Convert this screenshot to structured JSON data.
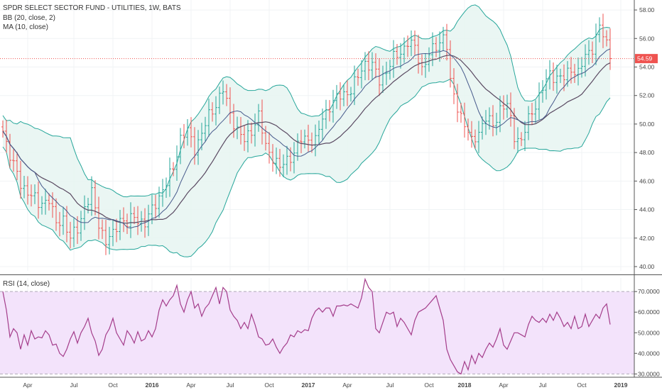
{
  "header": {
    "title": "SPDR SELECT SECTOR FUND - UTILITIES, 1W, BATS",
    "bb_label": "BB (20, close, 2)",
    "ma_label": "MA (10, close)",
    "rsi_label": "RSI (14, close)"
  },
  "colors": {
    "up": "#26a69a",
    "down": "#ef5350",
    "bb_band": "#26a69a",
    "bb_fill": "#e6f4f1",
    "basis": "#5a4a62",
    "ma": "#475a8c",
    "rsi_line": "#a43d8b",
    "rsi_fill": "#f3e3fb",
    "price_line": "#ef5350"
  },
  "chart_data": [
    {
      "type": "candlestick",
      "title": "SPDR SELECT SECTOR FUND - UTILITIES, 1W, BATS",
      "timeframe": "1W",
      "x_ticks": [
        "Apr",
        "Jul",
        "Oct",
        "2016",
        "Apr",
        "Jul",
        "Oct",
        "2017",
        "Apr",
        "Jul",
        "Oct",
        "2018",
        "Apr",
        "Jul",
        "Oct",
        "2019"
      ],
      "y_ticks": [
        "40.00",
        "42.00",
        "44.00",
        "46.00",
        "48.00",
        "50.00",
        "52.00",
        "54.00",
        "56.00",
        "58.00"
      ],
      "ylim": [
        39.7,
        58.7
      ],
      "last_price": "54.59",
      "close_approx": [
        [
          0,
          49.5
        ],
        [
          2,
          47.9
        ],
        [
          5,
          45.7
        ],
        [
          8,
          45.1
        ],
        [
          10,
          44.3
        ],
        [
          13,
          44.8
        ],
        [
          15,
          42.9
        ],
        [
          17,
          43.4
        ],
        [
          19,
          42.0
        ],
        [
          21,
          42.6
        ],
        [
          23,
          44.2
        ],
        [
          25,
          45.1
        ],
        [
          27,
          43.0
        ],
        [
          29,
          41.8
        ],
        [
          31,
          42.2
        ],
        [
          33,
          43.4
        ],
        [
          35,
          43.0
        ],
        [
          37,
          43.5
        ],
        [
          40,
          43.0
        ],
        [
          43,
          44.5
        ],
        [
          46,
          45.8
        ],
        [
          48,
          47.0
        ],
        [
          50,
          49.0
        ],
        [
          52,
          49.5
        ],
        [
          54,
          48.3
        ],
        [
          56,
          49.3
        ],
        [
          58,
          50.6
        ],
        [
          60,
          51.4
        ],
        [
          62,
          52.4
        ],
        [
          64,
          50.7
        ],
        [
          66,
          49.6
        ],
        [
          68,
          48.8
        ],
        [
          70,
          49.6
        ],
        [
          72,
          50.6
        ],
        [
          74,
          48.4
        ],
        [
          76,
          47.7
        ],
        [
          78,
          46.9
        ],
        [
          80,
          47.5
        ],
        [
          82,
          48.0
        ],
        [
          84,
          48.9
        ],
        [
          86,
          49.0
        ],
        [
          88,
          48.8
        ],
        [
          90,
          50.4
        ],
        [
          92,
          51.3
        ],
        [
          94,
          51.8
        ],
        [
          96,
          52.1
        ],
        [
          98,
          52.4
        ],
        [
          100,
          53.3
        ],
        [
          102,
          54.3
        ],
        [
          104,
          54.1
        ],
        [
          106,
          53.0
        ],
        [
          108,
          53.8
        ],
        [
          110,
          54.6
        ],
        [
          112,
          55.0
        ],
        [
          114,
          55.8
        ],
        [
          116,
          55.3
        ],
        [
          118,
          53.9
        ],
        [
          120,
          54.9
        ],
        [
          122,
          55.4
        ],
        [
          124,
          56.2
        ],
        [
          125,
          55.5
        ],
        [
          126,
          52.8
        ],
        [
          128,
          51.2
        ],
        [
          130,
          50.0
        ],
        [
          132,
          48.7
        ],
        [
          134,
          49.5
        ],
        [
          136,
          50.4
        ],
        [
          138,
          49.9
        ],
        [
          140,
          51.1
        ],
        [
          142,
          51.3
        ],
        [
          144,
          49.2
        ],
        [
          146,
          48.8
        ],
        [
          148,
          50.3
        ],
        [
          150,
          51.4
        ],
        [
          152,
          52.5
        ],
        [
          154,
          53.5
        ],
        [
          156,
          53.3
        ],
        [
          158,
          53.2
        ],
        [
          160,
          53.9
        ],
        [
          162,
          53.6
        ],
        [
          164,
          54.7
        ],
        [
          166,
          55.4
        ],
        [
          168,
          56.8
        ],
        [
          170,
          55.6
        ],
        [
          171,
          54.59
        ]
      ],
      "overlays": [
        {
          "name": "BB (20, close, 2)",
          "style": "bands"
        },
        {
          "name": "MA (10, close)",
          "style": "line"
        }
      ]
    },
    {
      "type": "line",
      "title": "RSI (14, close)",
      "y_ticks": [
        "30.0000",
        "40.0000",
        "50.0000",
        "60.0000",
        "70.0000"
      ],
      "ylim": [
        28.4,
        76.6
      ],
      "reference_lines": [
        30,
        70
      ],
      "values": [
        [
          0,
          70.0
        ],
        [
          1,
          61.0
        ],
        [
          2,
          48.0
        ],
        [
          3,
          52.0
        ],
        [
          4,
          50.0
        ],
        [
          5,
          42.0
        ],
        [
          6,
          49.0
        ],
        [
          7,
          44.0
        ],
        [
          8,
          51.0
        ],
        [
          9,
          47.0
        ],
        [
          10,
          48.0
        ],
        [
          11,
          47.5
        ],
        [
          12,
          51.0
        ],
        [
          13,
          49.0
        ],
        [
          14,
          44.0
        ],
        [
          15,
          44.5
        ],
        [
          16,
          40.0
        ],
        [
          17,
          38.5
        ],
        [
          18,
          42.0
        ],
        [
          19,
          47.0
        ],
        [
          20,
          50.5
        ],
        [
          21,
          45.0
        ],
        [
          22,
          50.0
        ],
        [
          23,
          53.0
        ],
        [
          24,
          57.0
        ],
        [
          25,
          50.0
        ],
        [
          26,
          46.0
        ],
        [
          27,
          39.0
        ],
        [
          28,
          42.0
        ],
        [
          29,
          49.0
        ],
        [
          30,
          52.0
        ],
        [
          31,
          57.0
        ],
        [
          32,
          50.0
        ],
        [
          33,
          47.0
        ],
        [
          34,
          44.0
        ],
        [
          35,
          51.0
        ],
        [
          36,
          48.5
        ],
        [
          37,
          45.0
        ],
        [
          38,
          50.5
        ],
        [
          39,
          46.0
        ],
        [
          40,
          47.0
        ],
        [
          41,
          51.0
        ],
        [
          42,
          48.0
        ],
        [
          43,
          52.0
        ],
        [
          44,
          61.0
        ],
        [
          45,
          66.0
        ],
        [
          46,
          63.0
        ],
        [
          47,
          66.0
        ],
        [
          48,
          68.0
        ],
        [
          49,
          73.0
        ],
        [
          50,
          64.0
        ],
        [
          51,
          60.0
        ],
        [
          52,
          66.0
        ],
        [
          53,
          70.0
        ],
        [
          54,
          62.0
        ],
        [
          55,
          64.0
        ],
        [
          56,
          58.0
        ],
        [
          57,
          62.0
        ],
        [
          58,
          64.0
        ],
        [
          59,
          68.0
        ],
        [
          60,
          72.0
        ],
        [
          61,
          64.0
        ],
        [
          62,
          72.0
        ],
        [
          63,
          70.0
        ],
        [
          64,
          61.0
        ],
        [
          65,
          58.0
        ],
        [
          66,
          56.0
        ],
        [
          67,
          52.0
        ],
        [
          68,
          55.0
        ],
        [
          69,
          52.0
        ],
        [
          70,
          59.0
        ],
        [
          71,
          54.0
        ],
        [
          72,
          48.0
        ],
        [
          73,
          47.0
        ],
        [
          74,
          44.0
        ],
        [
          75,
          44.5
        ],
        [
          76,
          47.0
        ],
        [
          77,
          43.0
        ],
        [
          78,
          40.0
        ],
        [
          79,
          43.0
        ],
        [
          80,
          45.0
        ],
        [
          81,
          49.0
        ],
        [
          82,
          48.0
        ],
        [
          83,
          51.0
        ],
        [
          84,
          50.0
        ],
        [
          85,
          51.5
        ],
        [
          86,
          51.0
        ],
        [
          87,
          57.0
        ],
        [
          88,
          60.5
        ],
        [
          89,
          62.0
        ],
        [
          90,
          60.0
        ],
        [
          91,
          62.0
        ],
        [
          92,
          62.0
        ],
        [
          93,
          58.0
        ],
        [
          94,
          63.0
        ],
        [
          95,
          63.0
        ],
        [
          96,
          63.5
        ],
        [
          97,
          63.0
        ],
        [
          98,
          64.0
        ],
        [
          99,
          63.0
        ],
        [
          100,
          62.0
        ],
        [
          101,
          67.0
        ],
        [
          102,
          76.0
        ],
        [
          103,
          72.0
        ],
        [
          104,
          70.0
        ],
        [
          105,
          52.0
        ],
        [
          106,
          50.0
        ],
        [
          107,
          55.0
        ],
        [
          108,
          60.0
        ],
        [
          109,
          59.0
        ],
        [
          110,
          60.0
        ],
        [
          111,
          53.0
        ],
        [
          112,
          57.0
        ],
        [
          113,
          55.0
        ],
        [
          114,
          52.0
        ],
        [
          115,
          49.0
        ],
        [
          116,
          56.0
        ],
        [
          117,
          60.0
        ],
        [
          118,
          61.0
        ],
        [
          119,
          62.0
        ],
        [
          120,
          64.0
        ],
        [
          121,
          66.0
        ],
        [
          122,
          68.0
        ],
        [
          123,
          62.0
        ],
        [
          124,
          56.0
        ],
        [
          125,
          42.0
        ],
        [
          126,
          37.0
        ],
        [
          127,
          34.0
        ],
        [
          128,
          31.0
        ],
        [
          129,
          30.0
        ],
        [
          130,
          36.0
        ],
        [
          131,
          32.0
        ],
        [
          132,
          39.0
        ],
        [
          133,
          35.0
        ],
        [
          134,
          40.0
        ],
        [
          135,
          38.0
        ],
        [
          136,
          42.0
        ],
        [
          137,
          45.0
        ],
        [
          138,
          43.0
        ],
        [
          139,
          47.0
        ],
        [
          140,
          52.0
        ],
        [
          141,
          44.0
        ],
        [
          142,
          42.0
        ],
        [
          143,
          46.0
        ],
        [
          144,
          50.0
        ],
        [
          145,
          50.0
        ],
        [
          146,
          49.0
        ],
        [
          147,
          48.0
        ],
        [
          148,
          54.0
        ],
        [
          149,
          58.0
        ],
        [
          150,
          56.0
        ],
        [
          151,
          55.0
        ],
        [
          152,
          57.0
        ],
        [
          153,
          55.0
        ],
        [
          154,
          59.0
        ],
        [
          155,
          56.0
        ],
        [
          156,
          60.0
        ],
        [
          157,
          57.0
        ],
        [
          158,
          53.0
        ],
        [
          159,
          55.0
        ],
        [
          160,
          52.0
        ],
        [
          161,
          58.0
        ],
        [
          162,
          52.0
        ],
        [
          163,
          53.0
        ],
        [
          164,
          59.0
        ],
        [
          165,
          53.0
        ],
        [
          166,
          56.0
        ],
        [
          167,
          59.0
        ],
        [
          168,
          57.0
        ],
        [
          169,
          62.0
        ],
        [
          170,
          64.0
        ],
        [
          171,
          54.0
        ]
      ]
    }
  ]
}
